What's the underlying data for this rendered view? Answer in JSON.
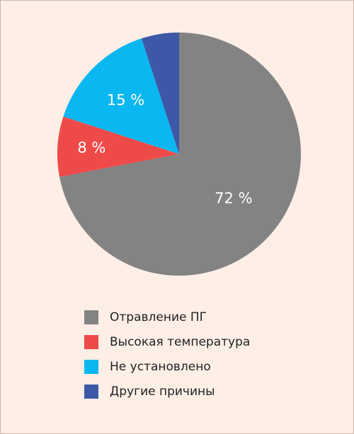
{
  "chart_data": {
    "type": "pie",
    "slices": [
      {
        "name": "Отравление ПГ",
        "value": 72,
        "label": "72 %",
        "color": "#838383"
      },
      {
        "name": "Высокая температура",
        "value": 8,
        "label": "8 %",
        "color": "#ef4a4a"
      },
      {
        "name": "Не установлено",
        "value": 15,
        "label": "15 %",
        "color": "#0ab7f0"
      },
      {
        "name": "Другие причины",
        "value": 5,
        "label": "",
        "color": "#3d58a6"
      }
    ],
    "legend_position": "bottom"
  }
}
